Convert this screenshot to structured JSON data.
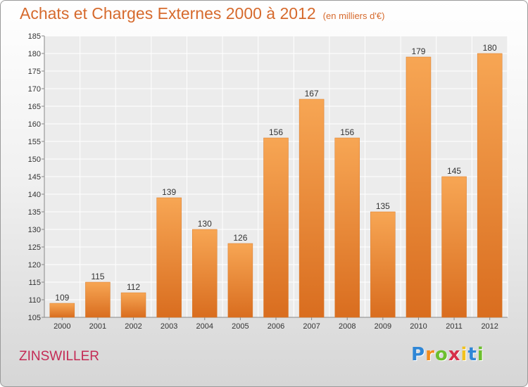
{
  "header": {
    "title": "Achats et Charges Externes 2000 à 2012",
    "subtitle": "(en milliers d'€)"
  },
  "footer": {
    "commune": "ZINSWILLER",
    "logo_letters": [
      "P",
      "r",
      "o",
      "x",
      "i",
      "t",
      "i"
    ],
    "logo_colors": [
      "#2e86d6",
      "#f28c1e",
      "#6cbf2e",
      "#d6304a",
      "#f2c21e",
      "#2e86d6",
      "#6cbf2e"
    ]
  },
  "colors": {
    "bar_light": "#f7a654",
    "bar_dark": "#d96d1f",
    "accent": "#d66a2d"
  },
  "chart_data": {
    "type": "bar",
    "title": "Achats et Charges Externes 2000 à 2012",
    "subtitle": "(en milliers d'€)",
    "categories": [
      "2000",
      "2001",
      "2002",
      "2003",
      "2004",
      "2005",
      "2006",
      "2007",
      "2008",
      "2009",
      "2010",
      "2011",
      "2012"
    ],
    "values": [
      109,
      115,
      112,
      139,
      130,
      126,
      156,
      167,
      156,
      135,
      179,
      145,
      180
    ],
    "ylim": [
      105,
      185
    ],
    "yticks": [
      105,
      110,
      115,
      120,
      125,
      130,
      135,
      140,
      145,
      150,
      155,
      160,
      165,
      170,
      175,
      180,
      185
    ],
    "grid": true,
    "data_labels": true
  }
}
